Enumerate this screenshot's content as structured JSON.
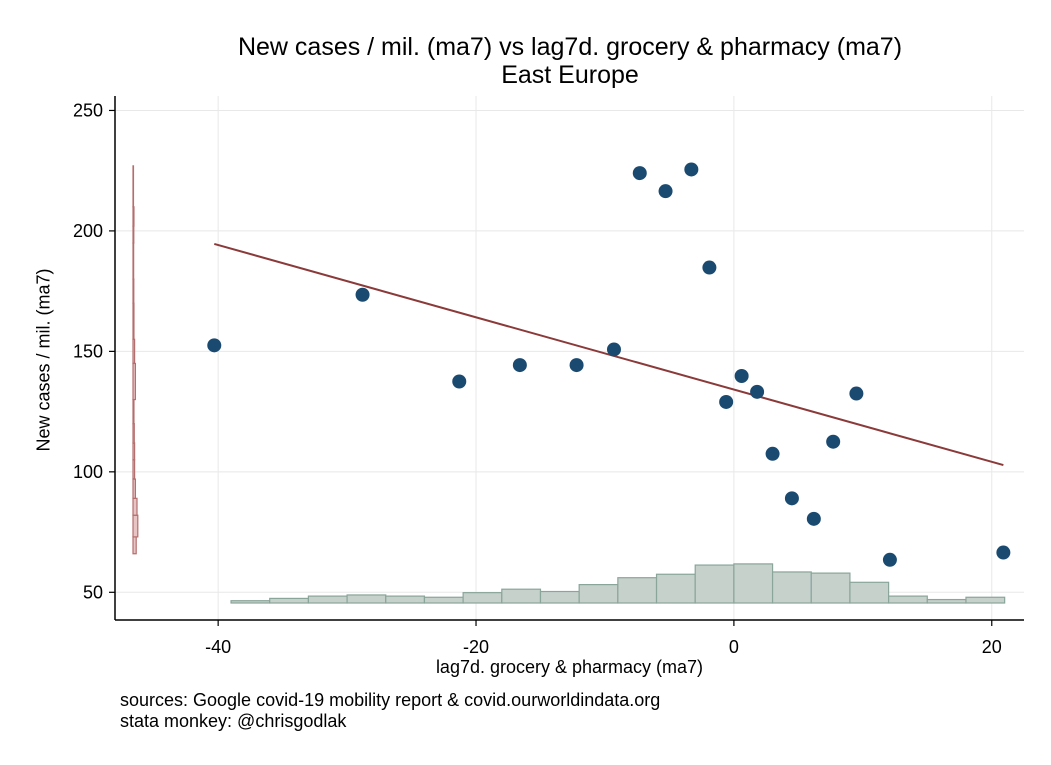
{
  "chart_data": {
    "type": "scatter",
    "title": "New cases / mil. (ma7) vs lag7d. grocery & pharmacy (ma7)",
    "subtitle": "East Europe",
    "xlabel": "lag7d. grocery & pharmacy (ma7)",
    "ylabel": "New cases / mil. (ma7)",
    "xlim": [
      -48,
      22.5
    ],
    "ylim": [
      38.5,
      256
    ],
    "x_ticks": [
      -40,
      -20,
      0,
      20
    ],
    "y_ticks": [
      50,
      100,
      150,
      200,
      250
    ],
    "grid": true,
    "legend": "none",
    "points": [
      {
        "x": -40.3,
        "y": 152.5
      },
      {
        "x": -28.8,
        "y": 173.5
      },
      {
        "x": -21.3,
        "y": 137.5
      },
      {
        "x": -16.6,
        "y": 144.3
      },
      {
        "x": -12.2,
        "y": 144.3
      },
      {
        "x": -9.3,
        "y": 150.8
      },
      {
        "x": -7.3,
        "y": 224.0
      },
      {
        "x": -5.3,
        "y": 216.5
      },
      {
        "x": -3.3,
        "y": 225.5
      },
      {
        "x": -1.9,
        "y": 184.8
      },
      {
        "x": -0.6,
        "y": 129.0
      },
      {
        "x": 0.6,
        "y": 139.8
      },
      {
        "x": 1.8,
        "y": 133.2
      },
      {
        "x": 3.0,
        "y": 107.5
      },
      {
        "x": 4.5,
        "y": 89.0
      },
      {
        "x": 6.2,
        "y": 80.5
      },
      {
        "x": 7.7,
        "y": 112.5
      },
      {
        "x": 9.5,
        "y": 132.5
      },
      {
        "x": 12.1,
        "y": 63.5
      },
      {
        "x": 20.9,
        "y": 66.5
      }
    ],
    "fit_line": {
      "x": [
        -40.3,
        20.9
      ],
      "y": [
        194.6,
        102.8
      ]
    },
    "x_histogram": {
      "bin_edges": [
        -39,
        -36,
        -33,
        -30,
        -27,
        -24,
        -21,
        -18,
        -15,
        -12,
        -9,
        -6,
        -3,
        0,
        3,
        6,
        9,
        12,
        15,
        18,
        21
      ],
      "heights": [
        1,
        2,
        3,
        3.5,
        3,
        2.5,
        4.5,
        6,
        5,
        8,
        11,
        12.5,
        16.5,
        17,
        13.5,
        13,
        9,
        3,
        1.5,
        2.5
      ]
    },
    "y_histogram": {
      "bin_edges": [
        66,
        73,
        82,
        89,
        97,
        105,
        112,
        120,
        130,
        145,
        155,
        170,
        180,
        195,
        202,
        210,
        227
      ],
      "widths": [
        2,
        3,
        2.5,
        1.5,
        1,
        1,
        0.8,
        0.6,
        1.5,
        1,
        0.6,
        0.5,
        0.4,
        0.5,
        0.6,
        0.3
      ]
    },
    "colors": {
      "points": "#1b4a70",
      "fit_line": "#8b3a3a",
      "x_hist_fill": "#c6d1cc",
      "x_hist_stroke": "#8aa59a",
      "y_hist_fill": "#e8c4c4",
      "y_hist_stroke": "#b56e6e",
      "grid": "#e8e8e8"
    }
  },
  "notes": {
    "source": "sources: Google covid-19 mobility report & covid.ourworldindata.org",
    "credit": "stata monkey: @chrisgodlak"
  }
}
